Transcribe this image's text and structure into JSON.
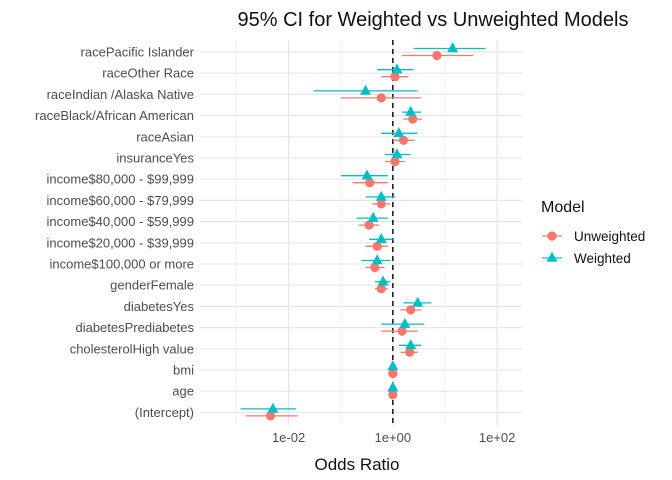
{
  "chart_data": {
    "type": "forest",
    "title": "95% CI for Weighted vs Unweighted Models",
    "xlabel": "Odds Ratio",
    "ylabel": "",
    "x_scale": "log10",
    "xlim": [
      0.0002,
      300
    ],
    "x_ticks": [
      {
        "value": 0.01,
        "label": "1e-02"
      },
      {
        "value": 1,
        "label": "1e+00"
      },
      {
        "value": 100,
        "label": "1e+02"
      }
    ],
    "reference_line": 1,
    "grid": true,
    "legend": {
      "title": "Model",
      "placement": "right"
    },
    "categories": [
      "racePacific Islander",
      "raceOther Race",
      "raceIndian /Alaska Native",
      "raceBlack/African American",
      "raceAsian",
      "insuranceYes",
      "income$80,000 - $99,999",
      "income$60,000 - $79,999",
      "income$40,000 - $59,999",
      "income$20,000 - $39,999",
      "income$100,000 or more",
      "genderFemale",
      "diabetesYes",
      "diabetesPrediabetes",
      "cholesterolHigh value",
      "bmi",
      "age",
      "(Intercept)"
    ],
    "series": [
      {
        "name": "Unweighted",
        "color": "#F8766D",
        "marker": "circle",
        "estimate": [
          7.0,
          1.1,
          0.6,
          2.4,
          1.6,
          1.1,
          0.36,
          0.6,
          0.35,
          0.5,
          0.45,
          0.6,
          2.2,
          1.5,
          2.1,
          1.0,
          1.0,
          0.0045
        ],
        "lower": [
          1.5,
          0.6,
          0.1,
          1.6,
          1.0,
          0.7,
          0.17,
          0.4,
          0.22,
          0.3,
          0.3,
          0.45,
          1.4,
          0.6,
          1.4,
          0.97,
          0.98,
          0.0015
        ],
        "upper": [
          35,
          2.0,
          3.5,
          3.6,
          2.6,
          1.7,
          0.8,
          0.9,
          0.55,
          0.8,
          0.7,
          0.8,
          3.5,
          3.0,
          3.0,
          1.03,
          1.02,
          0.015
        ]
      },
      {
        "name": "Weighted",
        "color": "#00BFC4",
        "marker": "triangle",
        "estimate": [
          14,
          1.2,
          0.3,
          2.2,
          1.3,
          1.2,
          0.32,
          0.6,
          0.42,
          0.6,
          0.5,
          0.65,
          3.0,
          1.7,
          2.2,
          1.0,
          1.0,
          0.005
        ],
        "lower": [
          2.5,
          0.5,
          0.03,
          1.5,
          0.6,
          0.7,
          0.1,
          0.3,
          0.2,
          0.35,
          0.25,
          0.45,
          1.6,
          0.6,
          1.3,
          0.97,
          0.97,
          0.0012
        ],
        "upper": [
          60,
          2.5,
          3.0,
          3.5,
          3.0,
          2.2,
          0.8,
          1.1,
          0.8,
          1.0,
          0.9,
          0.9,
          5.5,
          4.0,
          3.5,
          1.03,
          1.03,
          0.014
        ]
      }
    ]
  }
}
